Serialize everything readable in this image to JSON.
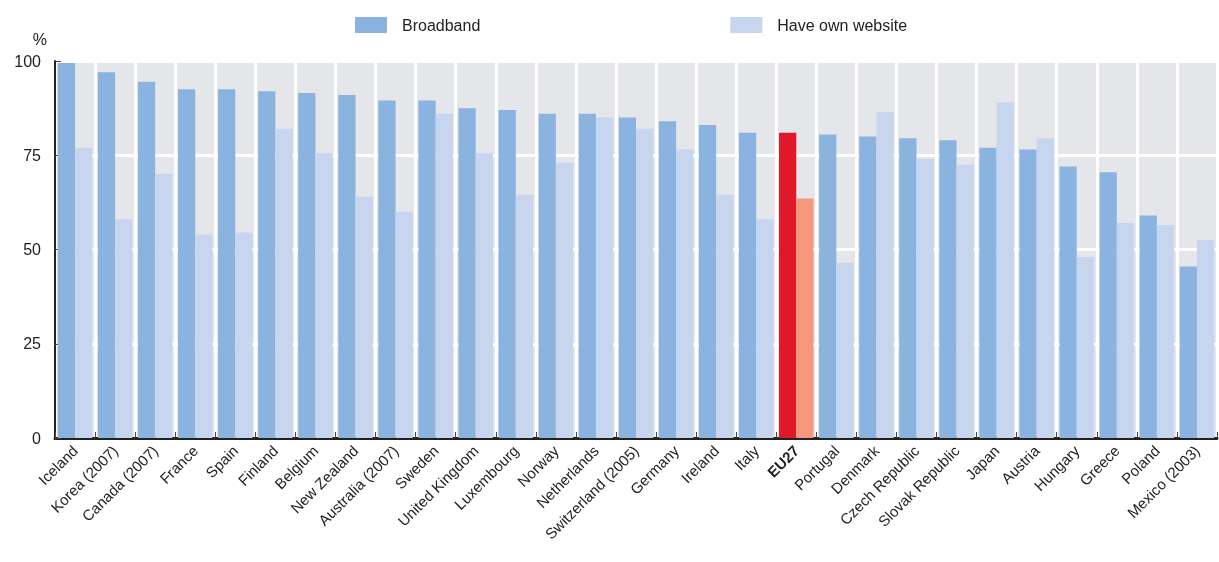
{
  "chart_data": {
    "type": "bar",
    "ylabel": "%",
    "categories": [
      "Iceland",
      "Korea (2007)",
      "Canada (2007)",
      "France",
      "Spain",
      "Finland",
      "Belgium",
      "New Zealand",
      "Australia (2007)",
      "Sweden",
      "United Kingdom",
      "Luxembourg",
      "Norway",
      "Netherlands",
      "Switzerland (2005)",
      "Germany",
      "Ireland",
      "Italy",
      "EU27",
      "Portugal",
      "Denmark",
      "Czech Republic",
      "Slovak Republic",
      "Japan",
      "Austria",
      "Hungary",
      "Greece",
      "Poland",
      "Mexico (2003)"
    ],
    "series": [
      {
        "name": "Broadband",
        "color": "#8ab3df",
        "colors": [
          "#8ab3df",
          "#8ab3df",
          "#8ab3df",
          "#8ab3df",
          "#8ab3df",
          "#8ab3df",
          "#8ab3df",
          "#8ab3df",
          "#8ab3df",
          "#8ab3df",
          "#8ab3df",
          "#8ab3df",
          "#8ab3df",
          "#8ab3df",
          "#8ab3df",
          "#8ab3df",
          "#8ab3df",
          "#8ab3df",
          "#e0192a",
          "#8ab3df",
          "#8ab3df",
          "#8ab3df",
          "#8ab3df",
          "#8ab3df",
          "#8ab3df",
          "#8ab3df",
          "#8ab3df",
          "#8ab3df",
          "#8ab3df"
        ],
        "values": [
          99.5,
          97,
          94.5,
          92.5,
          92.5,
          92,
          91.5,
          91,
          89.5,
          89.5,
          87.5,
          87,
          86,
          86,
          85,
          84,
          83,
          81,
          81,
          80.5,
          80,
          79.5,
          79,
          77,
          76.5,
          72,
          70.5,
          59,
          45.5
        ]
      },
      {
        "name": "Have own website",
        "color": "#c7d5ee",
        "colors": [
          "#c7d5ee",
          "#c7d5ee",
          "#c7d5ee",
          "#c7d5ee",
          "#c7d5ee",
          "#c7d5ee",
          "#c7d5ee",
          "#c7d5ee",
          "#c7d5ee",
          "#c7d5ee",
          "#c7d5ee",
          "#c7d5ee",
          "#c7d5ee",
          "#c7d5ee",
          "#c7d5ee",
          "#c7d5ee",
          "#c7d5ee",
          "#c7d5ee",
          "#f4977a",
          "#c7d5ee",
          "#c7d5ee",
          "#c7d5ee",
          "#c7d5ee",
          "#c7d5ee",
          "#c7d5ee",
          "#c7d5ee",
          "#c7d5ee",
          "#c7d5ee",
          "#c7d5ee"
        ],
        "values": [
          77,
          58,
          70,
          54,
          54.5,
          82,
          75.5,
          64,
          60,
          86,
          75.5,
          64.5,
          73,
          85,
          82,
          76.5,
          64.5,
          58,
          63.5,
          46.5,
          86.5,
          74,
          72.5,
          89,
          79.5,
          48,
          57,
          56.5,
          52.5
        ]
      }
    ],
    "ylim": [
      0,
      100
    ],
    "yticks": [
      0,
      25,
      50,
      75,
      100
    ],
    "grid": true,
    "legend": "top"
  }
}
